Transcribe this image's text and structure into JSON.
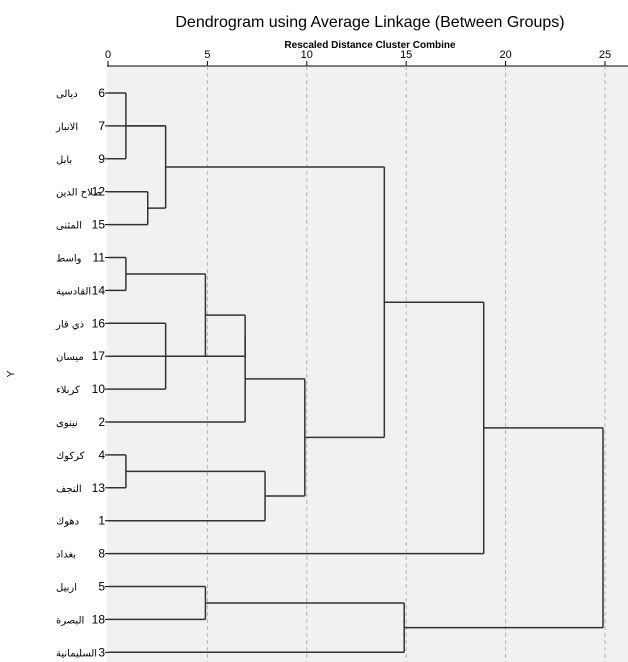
{
  "chart_data": {
    "type": "dendrogram",
    "title": "Dendrogram using Average Linkage (Between Groups)",
    "subtitle": "Rescaled Distance Cluster Combine",
    "ylabel": "Y",
    "xlim": [
      0,
      25
    ],
    "x_ticks": [
      0,
      5,
      10,
      15,
      20,
      25
    ],
    "leaves": [
      {
        "label": "ديالى",
        "case": "6"
      },
      {
        "label": "الانبار",
        "case": "7"
      },
      {
        "label": "بابل",
        "case": "9"
      },
      {
        "label": "صلاح الدين",
        "case": "12"
      },
      {
        "label": "المثنى",
        "case": "15"
      },
      {
        "label": "واسط",
        "case": "11"
      },
      {
        "label": "القادسية",
        "case": "14"
      },
      {
        "label": "ذي قار",
        "case": "16"
      },
      {
        "label": "ميسان",
        "case": "17"
      },
      {
        "label": "كربلاء",
        "case": "10"
      },
      {
        "label": "نينوى",
        "case": "2"
      },
      {
        "label": "كركوك",
        "case": "4"
      },
      {
        "label": "النجف",
        "case": "13"
      },
      {
        "label": "دهوك",
        "case": "1"
      },
      {
        "label": "بغداد",
        "case": "8"
      },
      {
        "label": "اربيل",
        "case": "5"
      },
      {
        "label": "البصرة",
        "case": "18"
      },
      {
        "label": "السليمانية",
        "case": "3"
      }
    ],
    "merges": [
      {
        "a": "L0",
        "b": "L2",
        "height": 0.9
      },
      {
        "a": "L5",
        "b": "L6",
        "height": 0.9
      },
      {
        "a": "L11",
        "b": "L12",
        "height": 0.9
      },
      {
        "a": "L3",
        "b": "L4",
        "height": 2.0
      },
      {
        "a": "M0",
        "b": "L1",
        "height": 2.9
      },
      {
        "a": "M4",
        "b": "M3",
        "height": 2.9
      },
      {
        "a": "L7",
        "b": "L9",
        "height": 2.9
      },
      {
        "a": "M1",
        "b": "L8",
        "height": 4.9
      },
      {
        "a": "M7",
        "b": "M6",
        "height": 6.9
      },
      {
        "a": "M8",
        "b": "L10",
        "height": 6.9
      },
      {
        "a": "M2",
        "b": "L13",
        "height": 7.9
      },
      {
        "a": "L15",
        "b": "L16",
        "height": 4.9
      },
      {
        "a": "M9",
        "b": "M10",
        "height": 9.9
      },
      {
        "a": "M5",
        "b": "M12",
        "height": 13.9
      },
      {
        "a": "L17",
        "b": "M11",
        "height": 14.9
      },
      {
        "a": "M13",
        "b": "L14",
        "height": 18.9
      },
      {
        "a": "M15",
        "b": "M14",
        "height": 24.9
      }
    ]
  }
}
